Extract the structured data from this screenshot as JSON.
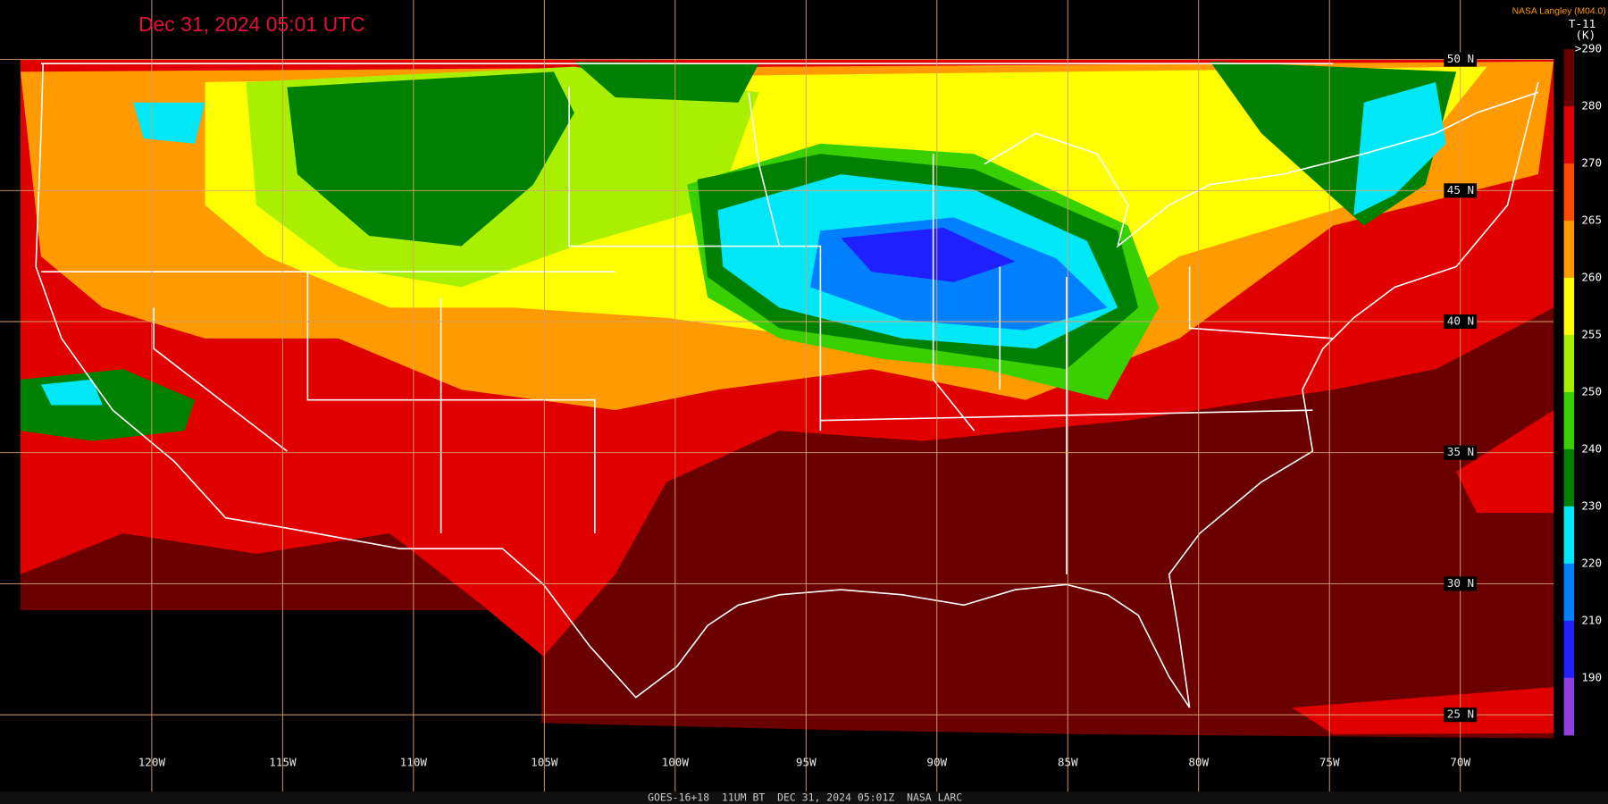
{
  "header": {
    "timestamp": "Dec 31, 2024 05:01 UTC",
    "credit": "NASA Langley (M04.0)"
  },
  "colorbar": {
    "channel": "T-11",
    "unit": "(K)",
    "labels": [
      ">290",
      "280",
      "270",
      "265",
      "260",
      "255",
      "250",
      "240",
      "230",
      "220",
      "210",
      "190"
    ],
    "colors": [
      "#6b0000",
      "#e00000",
      "#ff4a00",
      "#ff9a00",
      "#ffff00",
      "#a8f000",
      "#38d000",
      "#008000",
      "#00e8f8",
      "#0080ff",
      "#2020ff",
      "#9040e0"
    ]
  },
  "grid": {
    "longitudes": [
      "120W",
      "115W",
      "110W",
      "105W",
      "100W",
      "95W",
      "90W",
      "85W",
      "80W",
      "75W",
      "70W"
    ],
    "latitudes": [
      "50 N",
      "45 N",
      "40 N",
      "35 N",
      "30 N",
      "25 N"
    ]
  },
  "footer": "GOES-16+18  11UM BT  DEC 31, 2024 05:01Z  NASA LARC"
}
